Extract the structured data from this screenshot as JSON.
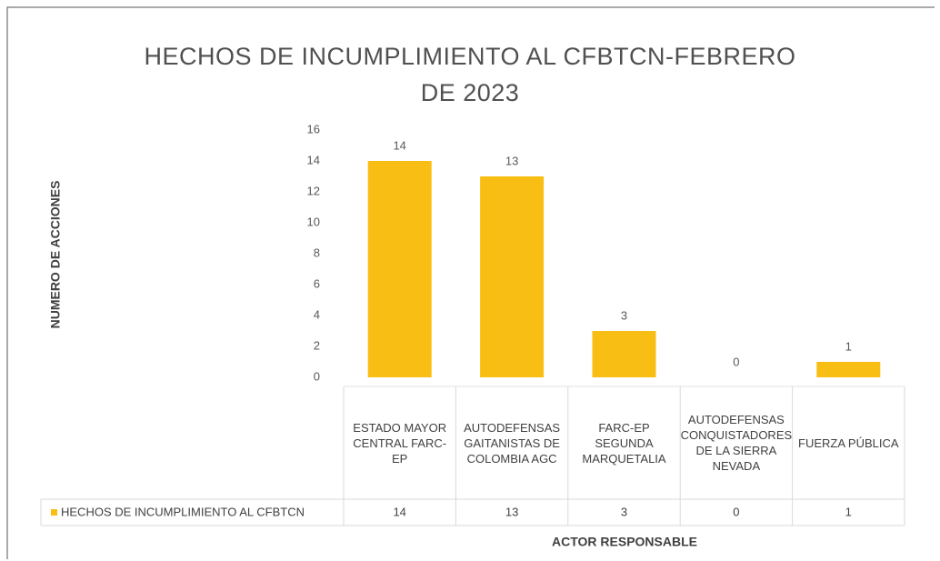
{
  "chart_data": {
    "type": "bar",
    "title": "HECHOS DE INCUMPLIMIENTO AL CFBTCN-FEBRERO DE 2023",
    "x_label": "ACTOR RESPONSABLE",
    "y_label": "NUMERO DE ACCIONES",
    "categories": [
      "ESTADO MAYOR CENTRAL FARC-EP",
      "AUTODEFENSAS GAITANISTAS DE COLOMBIA AGC",
      "FARC-EP SEGUNDA MARQUETALIA",
      "AUTODEFENSAS CONQUISTADORES DE LA SIERRA NEVADA",
      "FUERZA PÚBLICA"
    ],
    "series": [
      {
        "name": "HECHOS DE INCUMPLIMIENTO AL CFBTCN",
        "color": "#F9BE13",
        "values": [
          14,
          13,
          3,
          0,
          1
        ]
      }
    ],
    "ylim": [
      0,
      16
    ],
    "yticks": [
      0,
      2,
      4,
      6,
      8,
      10,
      12,
      14,
      16
    ],
    "grid": false,
    "data_table": true
  }
}
